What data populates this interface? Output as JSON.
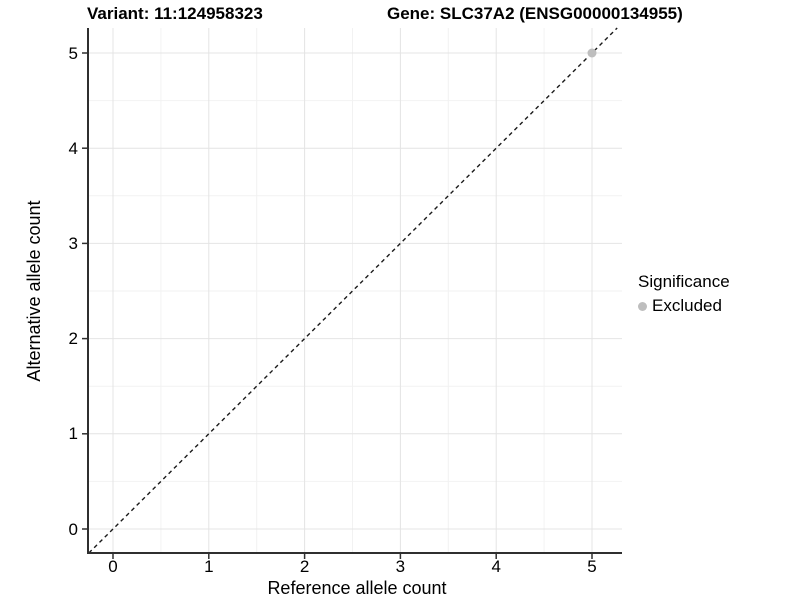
{
  "title": {
    "variant": "Variant: 11:124958323",
    "gene": "Gene: SLC37A2 (ENSG00000134955)"
  },
  "chart_data": {
    "type": "scatter",
    "title_left": "Variant: 11:124958323",
    "title_right": "Gene: SLC37A2 (ENSG00000134955)",
    "xlabel": "Reference allele count",
    "ylabel": "Alternative allele count",
    "xticks": [
      0,
      1,
      2,
      3,
      4,
      5
    ],
    "yticks": [
      0,
      1,
      2,
      3,
      4,
      5
    ],
    "xlim": [
      -0.26,
      5.31
    ],
    "ylim": [
      -0.25,
      5.26
    ],
    "grid": "major+minor",
    "points": [
      {
        "x": 5,
        "y": 5,
        "series": "Excluded"
      }
    ],
    "reference_line": {
      "type": "abline",
      "slope": 1,
      "intercept": 0,
      "style": "dashed"
    },
    "legend": {
      "title": "Significance",
      "position": "right",
      "items": [
        {
          "label": "Excluded",
          "color": "#bebebe",
          "marker": "circle"
        }
      ]
    },
    "colors": {
      "background": "#ffffff",
      "axis_line": "#2f2f2f",
      "tick_mark": "#2f2f2f",
      "grid_major": "#e4e4e4",
      "grid_minor": "#f2f2f2",
      "reference_line": "#1a1a1a",
      "point": "#bebebe",
      "text": "#000000"
    }
  }
}
